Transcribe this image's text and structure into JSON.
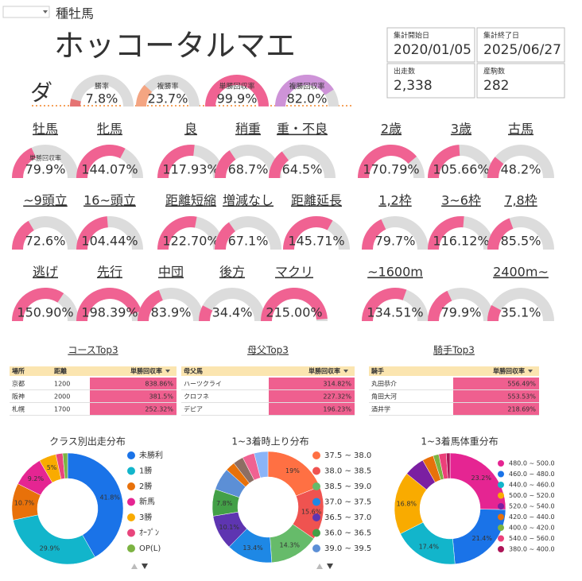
{
  "header": {
    "section": "種牡馬",
    "name": "ホッコータルマエ",
    "surface": "ダ"
  },
  "summary": [
    {
      "label": "集計開始日",
      "value": "2020/01/05"
    },
    {
      "label": "集計終了日",
      "value": "2025/06/27"
    },
    {
      "label": "出走数",
      "value": "2,338"
    },
    {
      "label": "産駒数",
      "value": "282"
    }
  ],
  "rates": {
    "range": [
      0,
      100
    ],
    "items": [
      {
        "label": "勝率",
        "value": 7.8,
        "value_label": "7.8%",
        "color": "#e57373"
      },
      {
        "label": "複勝率",
        "value": 23.7,
        "value_label": "23.7%",
        "color": "#f4a582"
      },
      {
        "label": "単勝回収率",
        "value": 99.9,
        "value_label": "99.9%",
        "color": "#f06292"
      },
      {
        "label": "複勝回収率",
        "value": 82.0,
        "value_label": "82.0%",
        "color": "#ce93d8"
      }
    ]
  },
  "recovery": {
    "range": [
      0,
      220
    ],
    "sublabel": "単勝回収率",
    "color": "#f06292",
    "rows": [
      [
        {
          "label": "牡馬",
          "value": 79.9,
          "value_label": "79.9%"
        },
        {
          "label": "牝馬",
          "value": 144.07,
          "value_label": "144.07%"
        },
        {
          "label": "良",
          "value": 117.93,
          "value_label": "117.93%"
        },
        {
          "label": "稍重",
          "value": 68.7,
          "value_label": "68.7%"
        },
        {
          "label": "重・不良",
          "value": 64.5,
          "value_label": "64.5%"
        },
        {
          "label": "2歳",
          "value": 170.79,
          "value_label": "170.79%"
        },
        {
          "label": "3歳",
          "value": 105.66,
          "value_label": "105.66%"
        },
        {
          "label": "古馬",
          "value": 48.2,
          "value_label": "48.2%"
        }
      ],
      [
        {
          "label": "~9頭立",
          "value": 72.6,
          "value_label": "72.6%"
        },
        {
          "label": "16~頭立",
          "value": 104.44,
          "value_label": "104.44%"
        },
        {
          "label": "距離短縮",
          "value": 122.7,
          "value_label": "122.70%"
        },
        {
          "label": "増減なし",
          "value": 67.1,
          "value_label": "67.1%"
        },
        {
          "label": "距離延長",
          "value": 145.71,
          "value_label": "145.71%"
        },
        {
          "label": "1,2枠",
          "value": 79.7,
          "value_label": "79.7%"
        },
        {
          "label": "3~6枠",
          "value": 116.12,
          "value_label": "116.12%"
        },
        {
          "label": "7,8枠",
          "value": 85.5,
          "value_label": "85.5%"
        }
      ],
      [
        {
          "label": "逃げ",
          "value": 150.9,
          "value_label": "150.90%"
        },
        {
          "label": "先行",
          "value": 198.39,
          "value_label": "198.39%"
        },
        {
          "label": "中団",
          "value": 83.9,
          "value_label": "83.9%"
        },
        {
          "label": "後方",
          "value": 34.4,
          "value_label": "34.4%"
        },
        {
          "label": "マクリ",
          "value": 215.0,
          "value_label": "215.00%"
        },
        {
          "label": "~1600m",
          "value": 134.51,
          "value_label": "134.51%"
        },
        {
          "label": null,
          "value": 79.9,
          "value_label": "79.9%"
        },
        {
          "label": "2400m~",
          "value": 35.1,
          "value_label": "35.1%"
        }
      ]
    ]
  },
  "tables": [
    {
      "title": "コースTop3",
      "columns": [
        "場所",
        "距離",
        "単勝回収率"
      ],
      "rows": [
        [
          "京都",
          "1200",
          "838.86%"
        ],
        [
          "阪神",
          "2000",
          "381.5%"
        ],
        [
          "札幌",
          "1700",
          "252.32%"
        ]
      ]
    },
    {
      "title": "母父Top3",
      "columns": [
        "母父馬",
        "単勝回収率"
      ],
      "rows": [
        [
          "ハーツクライ",
          "314.82%"
        ],
        [
          "クロフネ",
          "227.32%"
        ],
        [
          "デピア",
          "196.23%"
        ]
      ]
    },
    {
      "title": "騎手Top3",
      "columns": [
        "騎手",
        "単勝回収率"
      ],
      "rows": [
        [
          "丸田恭介",
          "556.49%"
        ],
        [
          "角田大河",
          "553.53%"
        ],
        [
          "酒井学",
          "218.69%"
        ]
      ]
    }
  ],
  "donuts": [
    {
      "title": "クラス別出走分布",
      "categories": [
        "未勝利",
        "1勝",
        "2勝",
        "新馬",
        "3勝",
        "ｵｰﾌﾟﾝ",
        "OP(L)"
      ],
      "values": [
        41.8,
        29.9,
        10.7,
        9.2,
        5,
        2,
        1.4
      ],
      "value_labels": [
        "41.8%",
        "29.9%",
        "10.7%",
        "9.2%",
        "5%",
        null,
        null
      ],
      "colors": [
        "#1a73e8",
        "#12b5cb",
        "#e8710a",
        "#e52592",
        "#f9ab00",
        "#e8457c",
        "#7cb342"
      ]
    },
    {
      "title": "1~3着時上り分布",
      "categories": [
        "37.5 ~ 38.0",
        "38.0 ~ 38.5",
        "38.5 ~ 39.0",
        "37.0 ~ 37.5",
        "36.5 ~ 37.0",
        "36.0 ~ 36.5",
        "39.0 ~ 39.5",
        null,
        null,
        null,
        null
      ],
      "values": [
        19,
        15.6,
        14.3,
        13.4,
        10.1,
        7.8,
        6.5,
        2.8,
        3,
        3.5,
        4
      ],
      "value_labels": [
        "19%",
        "15.6%",
        "14.3%",
        "13.4%",
        "10.1%",
        "7.8%",
        null,
        null,
        null,
        null,
        null
      ],
      "colors": [
        "#ff7043",
        "#ef5350",
        "#66bb6a",
        "#1e88e5",
        "#5e35b1",
        "#43a047",
        "#5c8fd6",
        "#e8710a",
        "#8d6e63",
        "#f06292",
        "#8ab4f8"
      ]
    },
    {
      "title": "1~3着馬体重分布",
      "categories": [
        "480.0 ~ 500.0",
        "460.0 ~ 480.0",
        "440.0 ~ 460.0",
        "500.0 ~ 520.0",
        "520.0 ~ 540.0",
        "420.0 ~ 440.0",
        "400.0 ~ 420.0",
        "540.0 ~ 560.0",
        "380.0 ~ 400.0"
      ],
      "values": [
        23.2,
        21.4,
        17.4,
        16.8,
        5.5,
        3,
        1.5,
        2,
        1
      ],
      "value_labels": [
        "23.2%",
        "21.4%",
        "17.4%",
        "16.8%",
        null,
        null,
        null,
        null,
        null
      ],
      "colors": [
        "#e52592",
        "#1a73e8",
        "#12b5cb",
        "#f9ab00",
        "#7b1fa2",
        "#e8710a",
        "#7cb342",
        "#ec407a",
        "#ad1457"
      ]
    }
  ]
}
